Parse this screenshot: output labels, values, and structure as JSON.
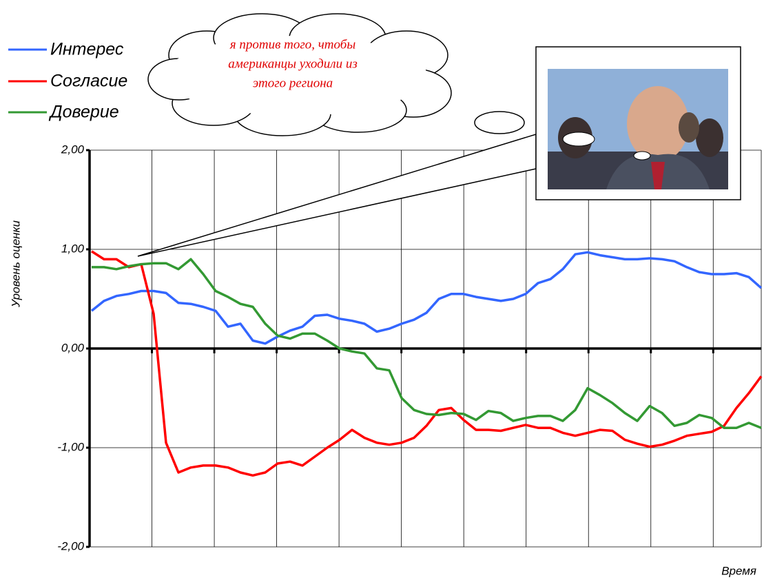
{
  "chart_data": {
    "type": "line",
    "y_label": "Уровень оценки",
    "x_label": "Время",
    "annotation": [
      "я против того, чтобы",
      "американцы уходили из",
      "этого региона"
    ],
    "ylim": [
      -2,
      2
    ],
    "yticks": [
      {
        "value": -2,
        "label": "-2,00"
      },
      {
        "value": -1,
        "label": "-1,00"
      },
      {
        "value": 0,
        "label": "0,00"
      },
      {
        "value": 1,
        "label": "1,00"
      },
      {
        "value": 2,
        "label": "2,00"
      }
    ],
    "grid": true,
    "legend": "top-left",
    "series": [
      {
        "name": "Интерес",
        "color": "#3366ff",
        "values": [
          0.38,
          0.48,
          0.53,
          0.55,
          0.58,
          0.58,
          0.56,
          0.46,
          0.45,
          0.42,
          0.38,
          0.22,
          0.25,
          0.08,
          0.05,
          0.12,
          0.18,
          0.22,
          0.33,
          0.34,
          0.3,
          0.28,
          0.25,
          0.17,
          0.2,
          0.25,
          0.29,
          0.36,
          0.5,
          0.55,
          0.55,
          0.52,
          0.5,
          0.48,
          0.5,
          0.55,
          0.66,
          0.7,
          0.8,
          0.95,
          0.97,
          0.94,
          0.92,
          0.9,
          0.9,
          0.91,
          0.9,
          0.88,
          0.82,
          0.77,
          0.75,
          0.75,
          0.76,
          0.72,
          0.61
        ]
      },
      {
        "name": "Согласие",
        "color": "#ff0000",
        "values": [
          0.98,
          0.9,
          0.9,
          0.82,
          0.85,
          0.35,
          -0.95,
          -1.25,
          -1.2,
          -1.18,
          -1.18,
          -1.2,
          -1.25,
          -1.28,
          -1.25,
          -1.16,
          -1.14,
          -1.18,
          -1.09,
          -1.0,
          -0.92,
          -0.82,
          -0.9,
          -0.95,
          -0.97,
          -0.95,
          -0.9,
          -0.78,
          -0.62,
          -0.6,
          -0.72,
          -0.82,
          -0.82,
          -0.83,
          -0.8,
          -0.77,
          -0.8,
          -0.8,
          -0.85,
          -0.88,
          -0.85,
          -0.82,
          -0.83,
          -0.92,
          -0.96,
          -0.99,
          -0.97,
          -0.93,
          -0.88,
          -0.86,
          -0.84,
          -0.78,
          -0.6,
          -0.45,
          -0.28
        ]
      },
      {
        "name": "Доверие",
        "color": "#339933",
        "values": [
          0.82,
          0.82,
          0.8,
          0.83,
          0.85,
          0.86,
          0.86,
          0.8,
          0.9,
          0.75,
          0.58,
          0.52,
          0.45,
          0.42,
          0.25,
          0.13,
          0.1,
          0.15,
          0.15,
          0.08,
          0.0,
          -0.03,
          -0.05,
          -0.2,
          -0.22,
          -0.5,
          -0.62,
          -0.66,
          -0.67,
          -0.65,
          -0.66,
          -0.72,
          -0.63,
          -0.65,
          -0.73,
          -0.7,
          -0.68,
          -0.68,
          -0.73,
          -0.62,
          -0.4,
          -0.47,
          -0.55,
          -0.65,
          -0.73,
          -0.58,
          -0.65,
          -0.78,
          -0.75,
          -0.67,
          -0.7,
          -0.8,
          -0.8,
          -0.75,
          -0.8
        ]
      }
    ]
  }
}
